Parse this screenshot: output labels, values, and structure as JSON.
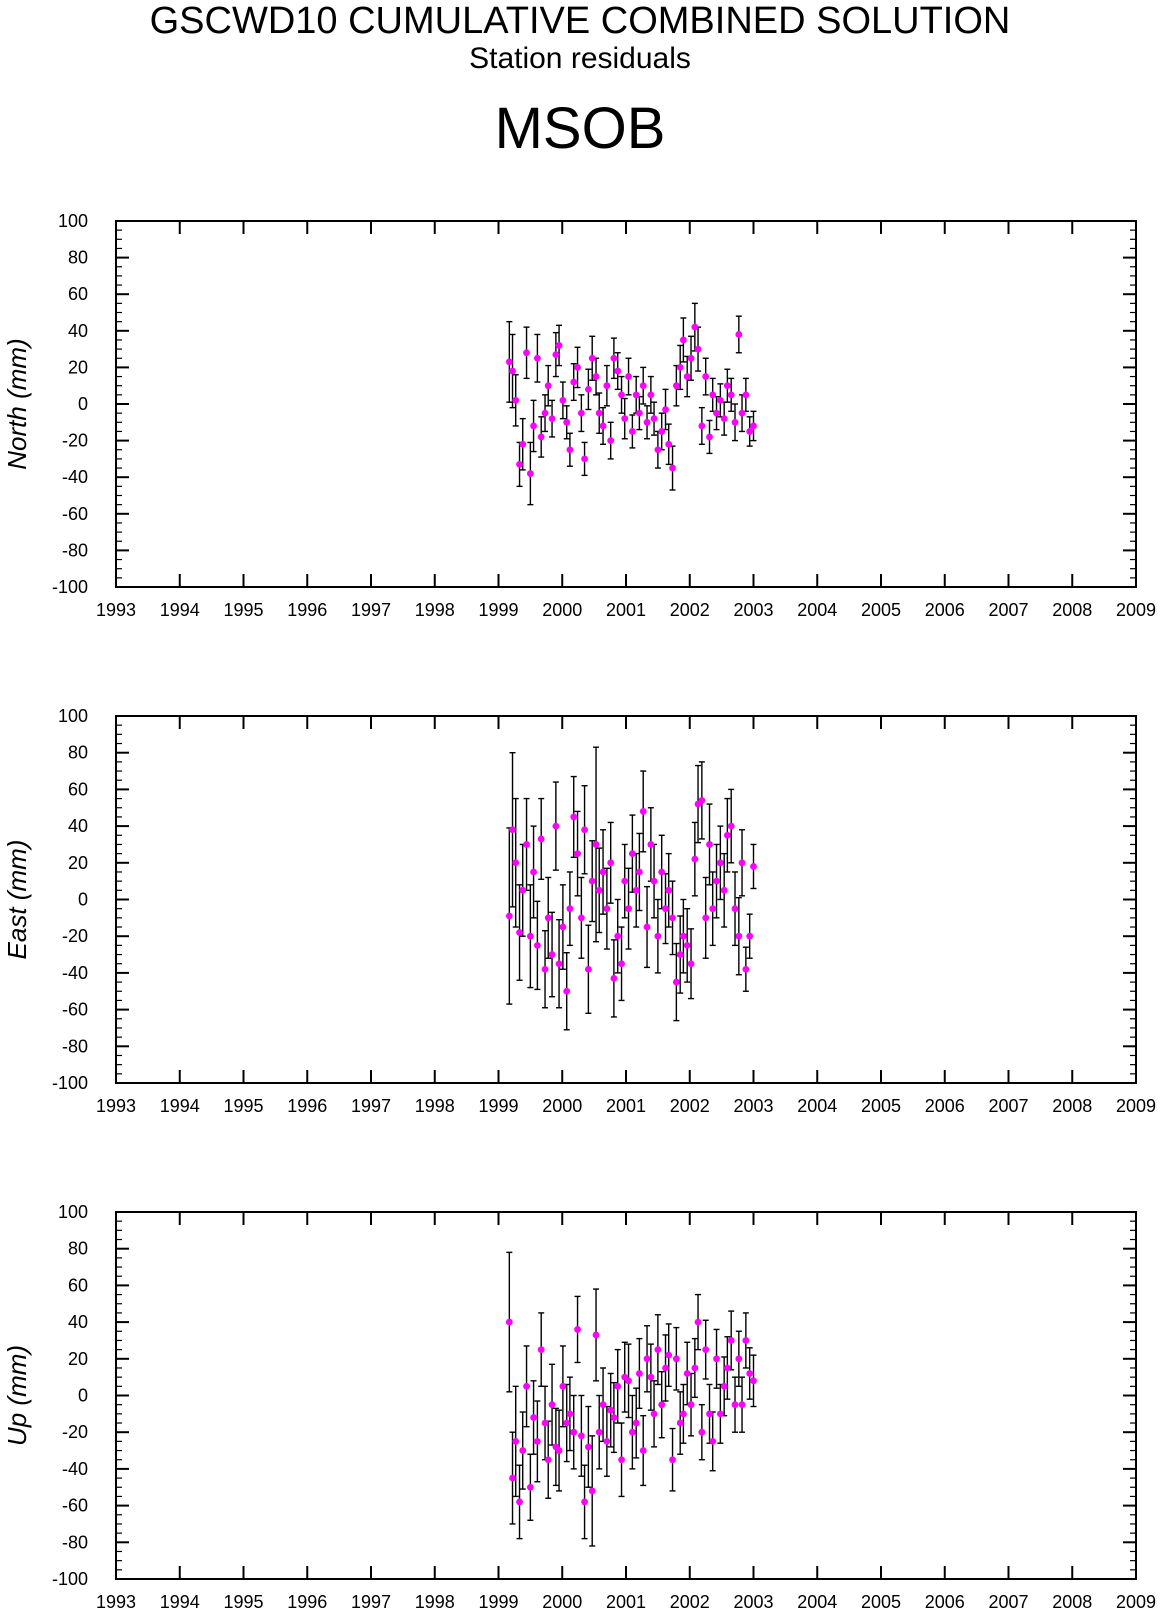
{
  "header": {
    "title": "GSCWD10 CUMULATIVE COMBINED SOLUTION",
    "subtitle": "Station residuals",
    "station": "MSOB"
  },
  "colors": {
    "point": "#ff00ff",
    "errorbar": "#000000",
    "axis": "#000000"
  },
  "chart_data": [
    {
      "type": "scatter",
      "ylabel": "North (mm)",
      "xlim": [
        1993,
        2009
      ],
      "ylim": [
        -100,
        100
      ],
      "xticks": [
        "1993",
        "1994",
        "1995",
        "1996",
        "1997",
        "1998",
        "1999",
        "2000",
        "2001",
        "2002",
        "2003",
        "2004",
        "2005",
        "2006",
        "2007",
        "2008",
        "2009"
      ],
      "yticks": [
        "100",
        "80",
        "60",
        "40",
        "20",
        "0",
        "-20",
        "-40",
        "-60",
        "-80",
        "-100"
      ],
      "grid": false,
      "series": [
        {
          "x": [
            1999.17,
            1999.22,
            1999.27,
            1999.33,
            1999.38,
            1999.44,
            1999.5,
            1999.55,
            1999.61,
            1999.67,
            1999.73,
            1999.78,
            1999.84,
            1999.9,
            1999.95,
            2000.01,
            2000.07,
            2000.12,
            2000.18,
            2000.24,
            2000.3,
            2000.35,
            2000.41,
            2000.47,
            2000.53,
            2000.58,
            2000.64,
            2000.7,
            2000.76,
            2000.81,
            2000.87,
            2000.93,
            2000.98,
            2001.04,
            2001.1,
            2001.16,
            2001.21,
            2001.27,
            2001.33,
            2001.39,
            2001.44,
            2001.5,
            2001.56,
            2001.62,
            2001.67,
            2001.73,
            2001.79,
            2001.85,
            2001.9,
            2001.96,
            2002.02,
            2002.08,
            2002.13,
            2002.19,
            2002.25,
            2002.31,
            2002.36,
            2002.42,
            2002.48,
            2002.54,
            2002.59,
            2002.65,
            2002.71,
            2002.77,
            2002.82,
            2002.88,
            2002.94,
            2003.0
          ],
          "y": [
            23,
            18,
            2,
            -33,
            -22,
            28,
            -38,
            -12,
            25,
            -18,
            -5,
            10,
            -8,
            27,
            32,
            2,
            -10,
            -25,
            12,
            20,
            -5,
            -30,
            8,
            25,
            15,
            -5,
            -12,
            10,
            -20,
            25,
            18,
            5,
            -8,
            15,
            -15,
            5,
            -5,
            10,
            -10,
            5,
            -8,
            -25,
            -15,
            -3,
            -22,
            -35,
            10,
            20,
            35,
            15,
            25,
            42,
            30,
            -12,
            15,
            -18,
            5,
            -5,
            2,
            -8,
            10,
            5,
            -10,
            38,
            -5,
            5,
            -15,
            -12
          ],
          "err": [
            22,
            20,
            14,
            12,
            14,
            14,
            17,
            14,
            13,
            11,
            10,
            11,
            10,
            12,
            11,
            10,
            9,
            9,
            10,
            11,
            10,
            9,
            11,
            12,
            10,
            11,
            10,
            11,
            10,
            11,
            10,
            10,
            11,
            10,
            9,
            10,
            9,
            10,
            9,
            10,
            9,
            10,
            10,
            11,
            11,
            12,
            11,
            12,
            12,
            11,
            12,
            13,
            12,
            10,
            10,
            9,
            9,
            9,
            9,
            9,
            9,
            9,
            10,
            10,
            10,
            9,
            8,
            8
          ]
        }
      ]
    },
    {
      "type": "scatter",
      "ylabel": "East (mm)",
      "xlim": [
        1993,
        2009
      ],
      "ylim": [
        -100,
        100
      ],
      "xticks": [
        "1993",
        "1994",
        "1995",
        "1996",
        "1997",
        "1998",
        "1999",
        "2000",
        "2001",
        "2002",
        "2003",
        "2004",
        "2005",
        "2006",
        "2007",
        "2008",
        "2009"
      ],
      "yticks": [
        "100",
        "80",
        "60",
        "40",
        "20",
        "0",
        "-20",
        "-40",
        "-60",
        "-80",
        "-100"
      ],
      "grid": false,
      "series": [
        {
          "x": [
            1999.17,
            1999.22,
            1999.27,
            1999.33,
            1999.38,
            1999.44,
            1999.5,
            1999.55,
            1999.61,
            1999.67,
            1999.73,
            1999.78,
            1999.84,
            1999.9,
            1999.95,
            2000.01,
            2000.07,
            2000.12,
            2000.18,
            2000.24,
            2000.3,
            2000.35,
            2000.41,
            2000.47,
            2000.53,
            2000.58,
            2000.64,
            2000.7,
            2000.76,
            2000.81,
            2000.87,
            2000.93,
            2000.98,
            2001.04,
            2001.1,
            2001.16,
            2001.21,
            2001.27,
            2001.33,
            2001.39,
            2001.44,
            2001.5,
            2001.56,
            2001.62,
            2001.67,
            2001.73,
            2001.79,
            2001.85,
            2001.9,
            2001.96,
            2002.02,
            2002.08,
            2002.13,
            2002.19,
            2002.25,
            2002.31,
            2002.36,
            2002.42,
            2002.48,
            2002.54,
            2002.59,
            2002.65,
            2002.71,
            2002.77,
            2002.82,
            2002.88,
            2002.94,
            2003.0
          ],
          "y": [
            -9,
            38,
            20,
            -18,
            5,
            30,
            -20,
            15,
            -25,
            33,
            -38,
            -10,
            -30,
            40,
            -35,
            -15,
            -50,
            -5,
            45,
            25,
            -10,
            38,
            -38,
            10,
            30,
            5,
            15,
            -5,
            20,
            -43,
            -20,
            -35,
            10,
            -5,
            25,
            5,
            15,
            48,
            -15,
            30,
            10,
            -20,
            15,
            -5,
            5,
            -10,
            -45,
            -30,
            -20,
            -25,
            -35,
            22,
            52,
            54,
            -10,
            30,
            -5,
            10,
            20,
            5,
            35,
            40,
            -5,
            -20,
            20,
            -38,
            -20,
            18
          ],
          "err": [
            48,
            42,
            35,
            26,
            25,
            25,
            28,
            25,
            24,
            22,
            21,
            22,
            23,
            24,
            24,
            23,
            21,
            20,
            22,
            23,
            22,
            24,
            24,
            22,
            53,
            23,
            23,
            22,
            22,
            21,
            20,
            20,
            20,
            22,
            21,
            20,
            21,
            22,
            22,
            20,
            20,
            20,
            20,
            19,
            20,
            20,
            21,
            21,
            20,
            20,
            19,
            20,
            21,
            21,
            22,
            22,
            20,
            20,
            20,
            20,
            20,
            20,
            20,
            21,
            18,
            12,
            12,
            12
          ]
        }
      ]
    },
    {
      "type": "scatter",
      "ylabel": "Up (mm)",
      "xlim": [
        1993,
        2009
      ],
      "ylim": [
        -100,
        100
      ],
      "xticks": [
        "1993",
        "1994",
        "1995",
        "1996",
        "1997",
        "1998",
        "1999",
        "2000",
        "2001",
        "2002",
        "2003",
        "2004",
        "2005",
        "2006",
        "2007",
        "2008",
        "2009"
      ],
      "yticks": [
        "100",
        "80",
        "60",
        "40",
        "20",
        "0",
        "-20",
        "-40",
        "-60",
        "-80",
        "-100"
      ],
      "grid": false,
      "series": [
        {
          "x": [
            1999.17,
            1999.22,
            1999.27,
            1999.33,
            1999.38,
            1999.44,
            1999.5,
            1999.55,
            1999.61,
            1999.67,
            1999.73,
            1999.78,
            1999.84,
            1999.9,
            1999.95,
            2000.01,
            2000.07,
            2000.12,
            2000.18,
            2000.24,
            2000.3,
            2000.35,
            2000.41,
            2000.47,
            2000.53,
            2000.58,
            2000.64,
            2000.7,
            2000.76,
            2000.81,
            2000.87,
            2000.93,
            2000.98,
            2001.04,
            2001.1,
            2001.16,
            2001.21,
            2001.27,
            2001.33,
            2001.39,
            2001.44,
            2001.5,
            2001.56,
            2001.62,
            2001.67,
            2001.73,
            2001.79,
            2001.85,
            2001.9,
            2001.96,
            2002.02,
            2002.08,
            2002.13,
            2002.19,
            2002.25,
            2002.31,
            2002.36,
            2002.42,
            2002.48,
            2002.54,
            2002.59,
            2002.65,
            2002.71,
            2002.77,
            2002.82,
            2002.88,
            2002.94,
            2003.0
          ],
          "y": [
            40,
            -45,
            -25,
            -58,
            -30,
            5,
            -50,
            -12,
            -25,
            25,
            -15,
            -35,
            -5,
            -28,
            -30,
            5,
            -15,
            -10,
            -20,
            36,
            -22,
            -58,
            -28,
            -52,
            33,
            -20,
            -5,
            -25,
            -8,
            -12,
            5,
            -35,
            10,
            8,
            -20,
            -15,
            12,
            -30,
            20,
            10,
            -10,
            25,
            -5,
            15,
            22,
            -35,
            20,
            -15,
            -10,
            12,
            -5,
            15,
            40,
            -20,
            25,
            -10,
            -25,
            20,
            -10,
            5,
            15,
            30,
            -5,
            20,
            -5,
            30,
            12,
            8
          ],
          "err": [
            38,
            25,
            30,
            20,
            21,
            22,
            18,
            20,
            22,
            20,
            20,
            21,
            22,
            21,
            22,
            22,
            21,
            20,
            20,
            18,
            22,
            20,
            22,
            30,
            25,
            20,
            20,
            19,
            20,
            19,
            20,
            20,
            19,
            20,
            20,
            19,
            19,
            19,
            18,
            18,
            18,
            19,
            18,
            18,
            17,
            17,
            17,
            17,
            16,
            17,
            17,
            16,
            15,
            15,
            16,
            16,
            16,
            16,
            16,
            16,
            17,
            16,
            15,
            15,
            15,
            15,
            14,
            14
          ]
        }
      ]
    }
  ]
}
